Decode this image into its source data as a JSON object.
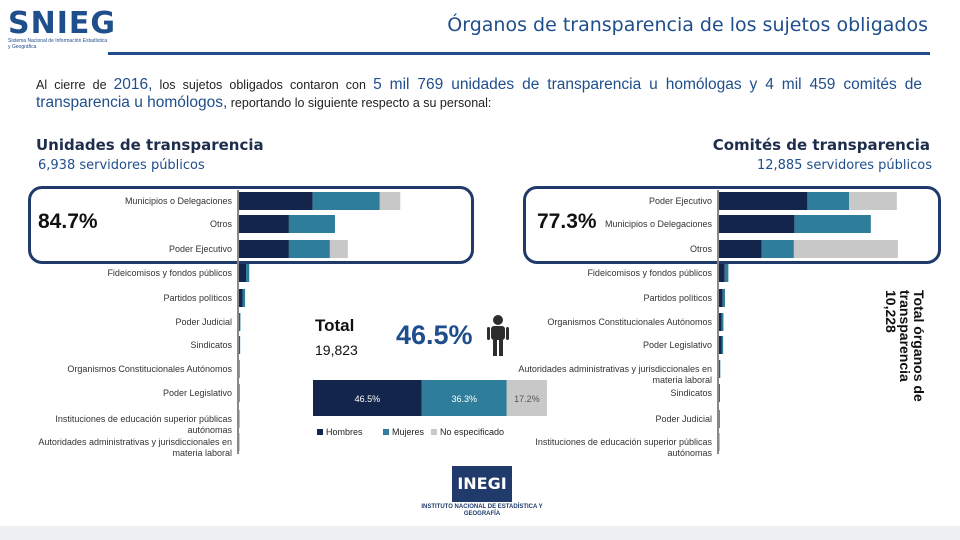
{
  "header": {
    "logo": "SNIEG",
    "logo_sub": "Sistema Nacional de Información Estadística y Geográfica",
    "title": "Órganos de transparencia de los sujetos obligados"
  },
  "intro": {
    "p1": "Al cierre de ",
    "year": "2016,",
    "p2": " los sujetos obligados contaron con ",
    "units": "5 mil 769 unidades de transparencia u homólogas y 4 mil 459 comités de transparencia u homólogos,",
    "p3": " reportando lo siguiente respecto a su personal:"
  },
  "left": {
    "title": "Unidades de transparencia",
    "subtitle": "6,938 servidores públicos",
    "pct": "84.7%"
  },
  "right": {
    "title": "Comités de transparencia",
    "subtitle": "12,885 servidores públicos",
    "pct": "77.3%"
  },
  "center": {
    "total_label": "Total",
    "total_value": "19,823",
    "pct": "46.5%",
    "side_total": "Total órganos de transparencia 10,228"
  },
  "colors": {
    "hombres": "#13254a",
    "mujeres": "#2e7d9a",
    "noesp": "#c8c8c8",
    "accent": "#1f4e8c"
  },
  "chart_data": [
    {
      "type": "bar",
      "title": "Unidades de transparencia",
      "categories": [
        "Municipios o Delegaciones",
        "Otros",
        "Poder Ejecutivo",
        "Fideicomisos y fondos públicos",
        "Partidos políticos",
        "Poder Judicial",
        "Sindicatos",
        "Organismos Constitucionales Autónomos",
        "Poder Legislativo",
        "Instituciones de educación superior públicas autónomas",
        "Autoridades administrativas y jurisdiccionales en materia laboral"
      ],
      "series": [
        {
          "name": "Hombres",
          "values": [
            1150,
            780,
            780,
            110,
            55,
            12,
            10,
            5,
            5,
            4,
            3
          ]
        },
        {
          "name": "Mujeres",
          "values": [
            1050,
            720,
            640,
            50,
            40,
            10,
            8,
            6,
            6,
            4,
            2
          ]
        },
        {
          "name": "No especificado",
          "values": [
            320,
            0,
            280,
            0,
            0,
            0,
            0,
            0,
            0,
            0,
            0
          ]
        }
      ]
    },
    {
      "type": "bar",
      "title": "Comités de transparencia",
      "categories": [
        "Poder Ejecutivo",
        "Municipios o Delegaciones",
        "Otros",
        "Fideicomisos y fondos públicos",
        "Partidos políticos",
        "Organismos Constitucionales Autónomos",
        "Poder Legislativo",
        "Autoridades administrativas y jurisdiccionales en materia laboral",
        "Sindicatos",
        "Poder Judicial",
        "Instituciones de educación superior públicas autónomas"
      ],
      "series": [
        {
          "name": "Hombres",
          "values": [
            1700,
            1450,
            820,
            110,
            70,
            50,
            48,
            15,
            10,
            8,
            5
          ]
        },
        {
          "name": "Mujeres",
          "values": [
            800,
            1470,
            620,
            70,
            45,
            35,
            32,
            10,
            6,
            6,
            4
          ]
        },
        {
          "name": "No especificado",
          "values": [
            920,
            0,
            2000,
            0,
            0,
            0,
            0,
            0,
            0,
            0,
            0
          ]
        }
      ]
    },
    {
      "type": "bar",
      "title": "Total",
      "categories": [
        "Total"
      ],
      "series": [
        {
          "name": "Hombres",
          "values": [
            46.5
          ]
        },
        {
          "name": "Mujeres",
          "values": [
            36.3
          ]
        },
        {
          "name": "No especificado",
          "values": [
            17.2
          ]
        }
      ],
      "labels": [
        "46.5%",
        "36.3%",
        "17.2%"
      ],
      "legend": [
        "Hombres",
        "Mujeres",
        "No especificado"
      ]
    }
  ],
  "footer": {
    "inegi": "INEGI",
    "inegi_sub": "INSTITUTO NACIONAL DE ESTADÍSTICA Y GEOGRAFÍA"
  }
}
